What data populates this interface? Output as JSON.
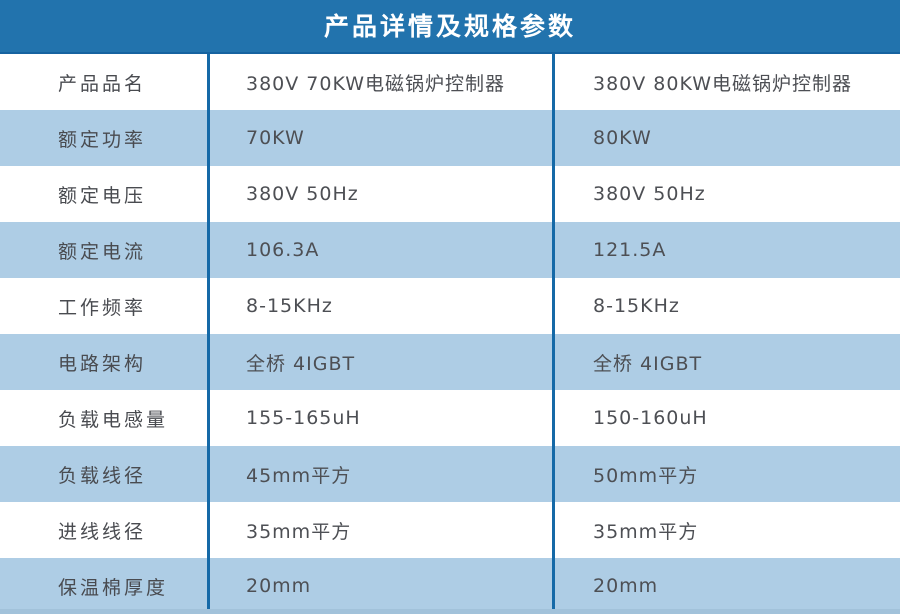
{
  "header": {
    "title": "产品详情及规格参数"
  },
  "colors": {
    "header_bg": "#2273ad",
    "divider_blue": "#1569a7",
    "alt_row_bg": "#aecde5",
    "text": "#4d4f54",
    "header_text": "#ffffff"
  },
  "table": {
    "rows": [
      {
        "label": "产品品名",
        "product1": "380V 70KW电磁锅炉控制器",
        "product2": "380V 80KW电磁锅炉控制器"
      },
      {
        "label": "额定功率",
        "product1": "70KW",
        "product2": "80KW"
      },
      {
        "label": "额定电压",
        "product1": "380V 50Hz",
        "product2": "380V 50Hz"
      },
      {
        "label": "额定电流",
        "product1": "106.3A",
        "product2": "121.5A"
      },
      {
        "label": "工作频率",
        "product1": "8-15KHz",
        "product2": "8-15KHz"
      },
      {
        "label": "电路架构",
        "product1": "全桥 4IGBT",
        "product2": "全桥 4IGBT"
      },
      {
        "label": "负载电感量",
        "product1": "155-165uH",
        "product2": "150-160uH"
      },
      {
        "label": "负载线径",
        "product1": "45mm平方",
        "product2": "50mm平方"
      },
      {
        "label": "进线线径",
        "product1": "35mm平方",
        "product2": "35mm平方"
      },
      {
        "label": "保温棉厚度",
        "product1": "20mm",
        "product2": "20mm"
      }
    ]
  }
}
